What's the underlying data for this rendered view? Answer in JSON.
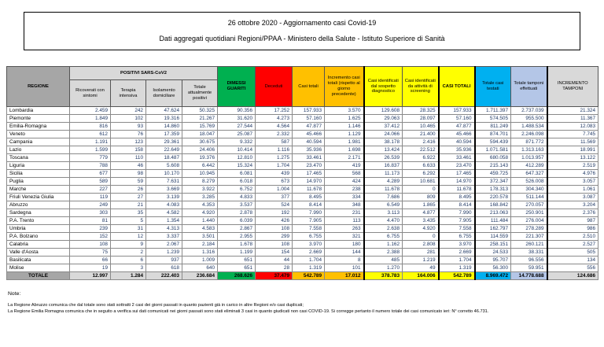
{
  "title_box": {
    "line1": "26 ottobre 2020 - Aggiornamento casi Covid-19",
    "line2": "Dati aggregati quotidiani Regioni/PPAA - Ministero della Salute - Istituto Superiore di Sanità"
  },
  "colors": {
    "region_header_bg": "#a6a6a6",
    "subheader_bg": "#d9d9d9",
    "green": "#00b050",
    "red": "#ff0000",
    "orange": "#ffc000",
    "yellow": "#ffff00",
    "blue": "#00b0f0",
    "lavender": "#b4c6e7",
    "number_text": "#1f3864"
  },
  "table": {
    "region_header": "REGIONE",
    "group_header": "POSITIVI SARS-CoV2",
    "columns": [
      {
        "name": "col-header-ricoverati-con-sintomi",
        "label": "Ricoverati con sintomi",
        "bg": "#d9d9d9",
        "bold": false
      },
      {
        "name": "col-header-terapia-intensiva",
        "label": "Terapia intensiva",
        "bg": "#d9d9d9",
        "bold": false
      },
      {
        "name": "col-header-isolamento-domiciliare",
        "label": "Isolamento domiciliare",
        "bg": "#d9d9d9",
        "bold": false
      },
      {
        "name": "col-header-totale-attualmente-positivi",
        "label": "Totale attualmente positivi",
        "bg": "#d9d9d9",
        "bold": false
      },
      {
        "name": "col-header-dimessi-guariti",
        "label": "DIMESSI GUARITI",
        "bg": "#00b050",
        "bold": true
      },
      {
        "name": "col-header-deceduti",
        "label": "Deceduti",
        "bg": "#ff0000",
        "bold": false
      },
      {
        "name": "col-header-casi-totali",
        "label": "Casi totali",
        "bg": "#ffc000",
        "bold": false
      },
      {
        "name": "col-header-incremento-casi-totali",
        "label": "Incremento casi totali (rispetto al giorno precedente)",
        "bg": "#ffc000",
        "bold": false
      },
      {
        "name": "col-header-casi-sospetto-diagnostico",
        "label": "Casi identificati dal sospetto diagnostico",
        "bg": "#ffff00",
        "bold": false
      },
      {
        "name": "col-header-casi-screening",
        "label": "Casi identificati da attività di screening",
        "bg": "#ffff00",
        "bold": false
      },
      {
        "name": "col-header-casi-totali-2",
        "label": "CASI TOTALI",
        "bg": "#ffff00",
        "bold": true
      },
      {
        "name": "col-header-totale-casi-testati",
        "label": "Totale casi testati",
        "bg": "#00b0f0",
        "bold": false
      },
      {
        "name": "col-header-totale-tamponi-effettuati",
        "label": "Totale tamponi effettuati",
        "bg": "#b4c6e7",
        "bold": false
      },
      {
        "name": "col-header-incremento-tamponi",
        "label": "INCREMENTO TAMPONI",
        "bg": "#d9d9d9",
        "bold": false
      }
    ],
    "rows": [
      {
        "region": "Lombardia",
        "values": [
          "2.459",
          "242",
          "47.624",
          "50.325",
          "90.356",
          "17.252",
          "157.933",
          "3.570",
          "129.608",
          "28.325",
          "157.933",
          "1.711.397",
          "2.737.039",
          "21.324"
        ]
      },
      {
        "region": "Piemonte",
        "values": [
          "1.849",
          "102",
          "19.316",
          "21.267",
          "31.620",
          "4.273",
          "57.160",
          "1.625",
          "29.063",
          "28.097",
          "57.160",
          "574.505",
          "955.500",
          "11.367"
        ]
      },
      {
        "region": "Emilia-Romagna",
        "values": [
          "816",
          "93",
          "14.860",
          "15.769",
          "27.544",
          "4.564",
          "47.877",
          "1.146",
          "37.412",
          "10.465",
          "47.877",
          "811.249",
          "1.488.534",
          "12.083"
        ]
      },
      {
        "region": "Veneto",
        "values": [
          "612",
          "76",
          "17.359",
          "18.047",
          "25.087",
          "2.332",
          "45.466",
          "1.129",
          "24.066",
          "21.400",
          "45.466",
          "874.701",
          "2.246.098",
          "7.745"
        ]
      },
      {
        "region": "Campania",
        "values": [
          "1.191",
          "123",
          "29.361",
          "30.675",
          "9.332",
          "587",
          "40.594",
          "1.981",
          "38.178",
          "2.416",
          "40.594",
          "594.439",
          "871.772",
          "11.569"
        ]
      },
      {
        "region": "Lazio",
        "values": [
          "1.599",
          "158",
          "22.649",
          "24.406",
          "10.414",
          "1.116",
          "35.936",
          "1.698",
          "13.424",
          "22.512",
          "35.936",
          "1.071.581",
          "1.313.163",
          "18.991"
        ]
      },
      {
        "region": "Toscana",
        "values": [
          "779",
          "110",
          "18.487",
          "19.376",
          "12.810",
          "1.275",
          "33.461",
          "2.171",
          "26.539",
          "6.922",
          "33.461",
          "680.058",
          "1.013.957",
          "13.122"
        ]
      },
      {
        "region": "Liguria",
        "values": [
          "788",
          "46",
          "5.608",
          "6.442",
          "15.324",
          "1.704",
          "23.470",
          "419",
          "16.837",
          "6.633",
          "23.470",
          "215.143",
          "412.289",
          "2.519"
        ]
      },
      {
        "region": "Sicilia",
        "values": [
          "677",
          "98",
          "10.170",
          "10.945",
          "6.081",
          "439",
          "17.465",
          "568",
          "11.173",
          "6.292",
          "17.465",
          "459.725",
          "647.327",
          "4.976"
        ]
      },
      {
        "region": "Puglia",
        "values": [
          "589",
          "59",
          "7.631",
          "8.279",
          "6.018",
          "673",
          "14.970",
          "424",
          "4.289",
          "10.681",
          "14.970",
          "372.347",
          "526.008",
          "3.057"
        ]
      },
      {
        "region": "Marche",
        "values": [
          "227",
          "26",
          "3.669",
          "3.922",
          "6.752",
          "1.004",
          "11.678",
          "238",
          "11.678",
          "0",
          "11.678",
          "178.313",
          "304.340",
          "1.061"
        ]
      },
      {
        "region": "Friuli Venezia Giulia",
        "values": [
          "119",
          "27",
          "3.139",
          "3.285",
          "4.833",
          "377",
          "8.495",
          "334",
          "7.686",
          "809",
          "8.495",
          "220.578",
          "511.144",
          "3.087"
        ]
      },
      {
        "region": "Abruzzo",
        "values": [
          "249",
          "21",
          "4.083",
          "4.353",
          "3.537",
          "524",
          "8.414",
          "348",
          "6.549",
          "1.865",
          "8.414",
          "168.842",
          "270.057",
          "3.204"
        ]
      },
      {
        "region": "Sardegna",
        "values": [
          "303",
          "35",
          "4.582",
          "4.920",
          "2.878",
          "192",
          "7.990",
          "231",
          "3.113",
          "4.877",
          "7.990",
          "213.063",
          "250.901",
          "2.376"
        ]
      },
      {
        "region": "P.A. Trento",
        "values": [
          "81",
          "5",
          "1.354",
          "1.440",
          "6.039",
          "426",
          "7.905",
          "113",
          "4.470",
          "3.435",
          "7.905",
          "111.484",
          "276.004",
          "987"
        ]
      },
      {
        "region": "Umbria",
        "values": [
          "239",
          "31",
          "4.313",
          "4.583",
          "2.867",
          "108",
          "7.558",
          "263",
          "2.638",
          "4.920",
          "7.558",
          "162.797",
          "278.289",
          "986"
        ]
      },
      {
        "region": "P.A. Bolzano",
        "values": [
          "152",
          "12",
          "3.337",
          "3.501",
          "2.955",
          "299",
          "6.755",
          "321",
          "6.755",
          "0",
          "6.755",
          "114.559",
          "221.307",
          "2.510"
        ]
      },
      {
        "region": "Calabria",
        "values": [
          "108",
          "9",
          "2.067",
          "2.184",
          "1.678",
          "108",
          "3.970",
          "180",
          "1.162",
          "2.808",
          "3.970",
          "258.151",
          "260.121",
          "2.527"
        ]
      },
      {
        "region": "Valle d'Aosta",
        "values": [
          "75",
          "2",
          "1.239",
          "1.316",
          "1.199",
          "154",
          "2.669",
          "144",
          "2.388",
          "281",
          "2.669",
          "24.533",
          "38.331",
          "505"
        ]
      },
      {
        "region": "Basilicata",
        "values": [
          "66",
          "6",
          "937",
          "1.009",
          "651",
          "44",
          "1.704",
          "8",
          "485",
          "1.219",
          "1.704",
          "95.707",
          "96.556",
          "134"
        ]
      },
      {
        "region": "Molise",
        "values": [
          "19",
          "3",
          "618",
          "640",
          "651",
          "28",
          "1.319",
          "101",
          "1.270",
          "49",
          "1.319",
          "56.300",
          "59.951",
          "556"
        ]
      }
    ],
    "total_row": {
      "region": "TOTALE",
      "values": [
        "12.997",
        "1.284",
        "222.403",
        "236.684",
        "268.626",
        "37.479",
        "542.789",
        "17.012",
        "378.783",
        "164.006",
        "542.789",
        "8.969.472",
        "14.778.688",
        "124.686"
      ],
      "region_bg": "#a6a6a6",
      "cell_bgs": [
        "#d9d9d9",
        "#d9d9d9",
        "#d9d9d9",
        "#d9d9d9",
        "#00b050",
        "#ff0000",
        "#ffc000",
        "#ffc000",
        "#ffff00",
        "#ffff00",
        "#ffff00",
        "#00b0f0",
        "#b4c6e7",
        "#d9d9d9"
      ]
    }
  },
  "notes": {
    "title": "Note:",
    "line1": "La Regione Abruzzo comunica che dal totale sono stati sottratti 2 casi dei giorni passati in quanto pazienti già in carico in altre Regioni e/o casi duplicati;",
    "line2": "La Regione Emilia Romagna comunica che in seguito a verifica sui dati comunicati nei giorni passati sono stati eliminati 3 casi in quanto giudicati non casi COVID-19. Si corregge pertanto il numero totale dei casi comunicato ieri: N° corretto 46.731."
  }
}
